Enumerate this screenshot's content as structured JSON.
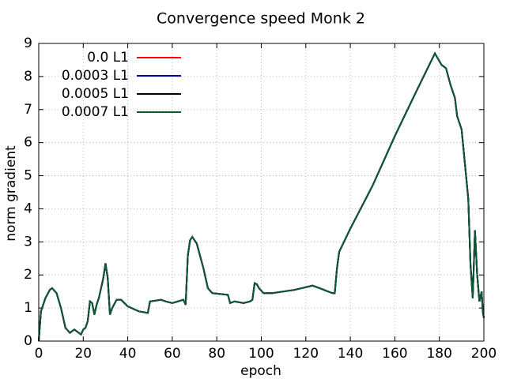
{
  "chart_data": {
    "type": "line",
    "title": "Convergence speed Monk 2",
    "xlabel": "epoch",
    "ylabel": "norm gradient",
    "x": [
      0,
      1,
      3,
      5,
      6,
      8,
      10,
      12,
      14,
      15,
      16,
      18,
      19,
      20,
      21,
      22,
      23,
      24,
      25,
      26,
      27,
      29,
      30,
      31,
      32,
      33,
      35,
      37,
      40,
      45,
      49,
      50,
      55,
      57,
      60,
      65,
      66,
      67,
      68,
      69,
      71,
      74,
      76,
      78,
      85,
      86,
      88,
      92,
      95,
      96,
      97,
      98,
      99,
      101,
      105,
      115,
      120,
      123,
      127,
      130,
      132,
      133,
      134,
      135,
      140,
      150,
      160,
      170,
      178,
      181,
      183,
      185,
      187,
      188,
      190,
      192,
      193,
      194,
      195,
      196,
      197,
      198,
      199,
      199.5,
      200
    ],
    "series": [
      {
        "name": "0.0 L1",
        "color": "#ff0000",
        "values": [
          0.0,
          0.9,
          1.3,
          1.55,
          1.6,
          1.45,
          1.0,
          0.4,
          0.25,
          0.3,
          0.35,
          0.25,
          0.2,
          0.35,
          0.4,
          0.6,
          1.2,
          1.15,
          0.8,
          1.1,
          1.3,
          1.9,
          2.35,
          1.9,
          0.8,
          1.0,
          1.25,
          1.25,
          1.05,
          0.9,
          0.85,
          1.2,
          1.25,
          1.2,
          1.15,
          1.25,
          1.1,
          2.6,
          3.05,
          3.15,
          2.95,
          2.2,
          1.6,
          1.45,
          1.4,
          1.15,
          1.2,
          1.15,
          1.2,
          1.25,
          1.75,
          1.72,
          1.6,
          1.45,
          1.45,
          1.55,
          1.63,
          1.68,
          1.58,
          1.5,
          1.45,
          1.45,
          2.2,
          2.7,
          3.4,
          4.7,
          6.2,
          7.6,
          8.7,
          8.35,
          8.25,
          7.75,
          7.35,
          6.8,
          6.4,
          5.0,
          4.3,
          2.3,
          1.3,
          3.35,
          2.0,
          1.2,
          1.5,
          0.9,
          0.7
        ]
      },
      {
        "name": "0.0003 L1",
        "color": "#0000aa",
        "values": [
          0.0,
          0.9,
          1.3,
          1.55,
          1.6,
          1.45,
          1.0,
          0.4,
          0.25,
          0.3,
          0.35,
          0.25,
          0.2,
          0.35,
          0.4,
          0.6,
          1.2,
          1.15,
          0.8,
          1.1,
          1.3,
          1.9,
          2.35,
          1.9,
          0.8,
          1.0,
          1.25,
          1.25,
          1.05,
          0.9,
          0.85,
          1.2,
          1.25,
          1.2,
          1.15,
          1.25,
          1.1,
          2.6,
          3.05,
          3.15,
          2.95,
          2.2,
          1.6,
          1.45,
          1.4,
          1.15,
          1.2,
          1.15,
          1.2,
          1.25,
          1.75,
          1.72,
          1.6,
          1.45,
          1.45,
          1.55,
          1.63,
          1.68,
          1.58,
          1.5,
          1.45,
          1.45,
          2.2,
          2.7,
          3.4,
          4.7,
          6.2,
          7.6,
          8.7,
          8.35,
          8.25,
          7.75,
          7.35,
          6.8,
          6.4,
          5.0,
          4.3,
          2.3,
          1.3,
          3.35,
          2.0,
          1.2,
          1.5,
          0.9,
          0.7
        ]
      },
      {
        "name": "0.0005 L1",
        "color": "#000000",
        "values": [
          0.0,
          0.9,
          1.3,
          1.55,
          1.6,
          1.45,
          1.0,
          0.4,
          0.25,
          0.3,
          0.35,
          0.25,
          0.2,
          0.35,
          0.4,
          0.6,
          1.2,
          1.15,
          0.8,
          1.1,
          1.3,
          1.9,
          2.35,
          1.9,
          0.8,
          1.0,
          1.25,
          1.25,
          1.05,
          0.9,
          0.85,
          1.2,
          1.25,
          1.2,
          1.15,
          1.25,
          1.1,
          2.6,
          3.05,
          3.15,
          2.95,
          2.2,
          1.6,
          1.45,
          1.4,
          1.15,
          1.2,
          1.15,
          1.2,
          1.25,
          1.75,
          1.72,
          1.6,
          1.45,
          1.45,
          1.55,
          1.63,
          1.68,
          1.58,
          1.5,
          1.45,
          1.45,
          2.2,
          2.7,
          3.4,
          4.7,
          6.2,
          7.6,
          8.7,
          8.35,
          8.25,
          7.75,
          7.35,
          6.8,
          6.4,
          5.0,
          4.3,
          2.3,
          1.3,
          3.35,
          2.0,
          1.2,
          1.5,
          0.9,
          0.7
        ]
      },
      {
        "name": "0.0007 L1",
        "color": "#0b5a34",
        "values": [
          0.0,
          0.9,
          1.3,
          1.55,
          1.6,
          1.45,
          1.0,
          0.4,
          0.25,
          0.3,
          0.35,
          0.25,
          0.2,
          0.35,
          0.4,
          0.6,
          1.2,
          1.15,
          0.8,
          1.1,
          1.3,
          1.9,
          2.35,
          1.9,
          0.8,
          1.0,
          1.25,
          1.25,
          1.05,
          0.9,
          0.85,
          1.2,
          1.25,
          1.2,
          1.15,
          1.25,
          1.1,
          2.6,
          3.05,
          3.15,
          2.95,
          2.2,
          1.6,
          1.45,
          1.4,
          1.15,
          1.2,
          1.15,
          1.2,
          1.25,
          1.75,
          1.72,
          1.6,
          1.45,
          1.45,
          1.55,
          1.63,
          1.68,
          1.58,
          1.5,
          1.45,
          1.45,
          2.2,
          2.7,
          3.4,
          4.7,
          6.2,
          7.6,
          8.7,
          8.35,
          8.25,
          7.75,
          7.35,
          6.8,
          6.4,
          5.0,
          4.3,
          2.3,
          1.3,
          3.35,
          2.0,
          1.2,
          1.5,
          0.9,
          0.7
        ]
      }
    ],
    "xlim": [
      0,
      200
    ],
    "xticks": [
      0,
      20,
      40,
      60,
      80,
      100,
      120,
      140,
      160,
      180,
      200
    ],
    "ylim": [
      0,
      9
    ],
    "yticks": [
      0,
      1,
      2,
      3,
      4,
      5,
      6,
      7,
      8,
      9
    ],
    "grid": true,
    "legend": "upper left"
  }
}
